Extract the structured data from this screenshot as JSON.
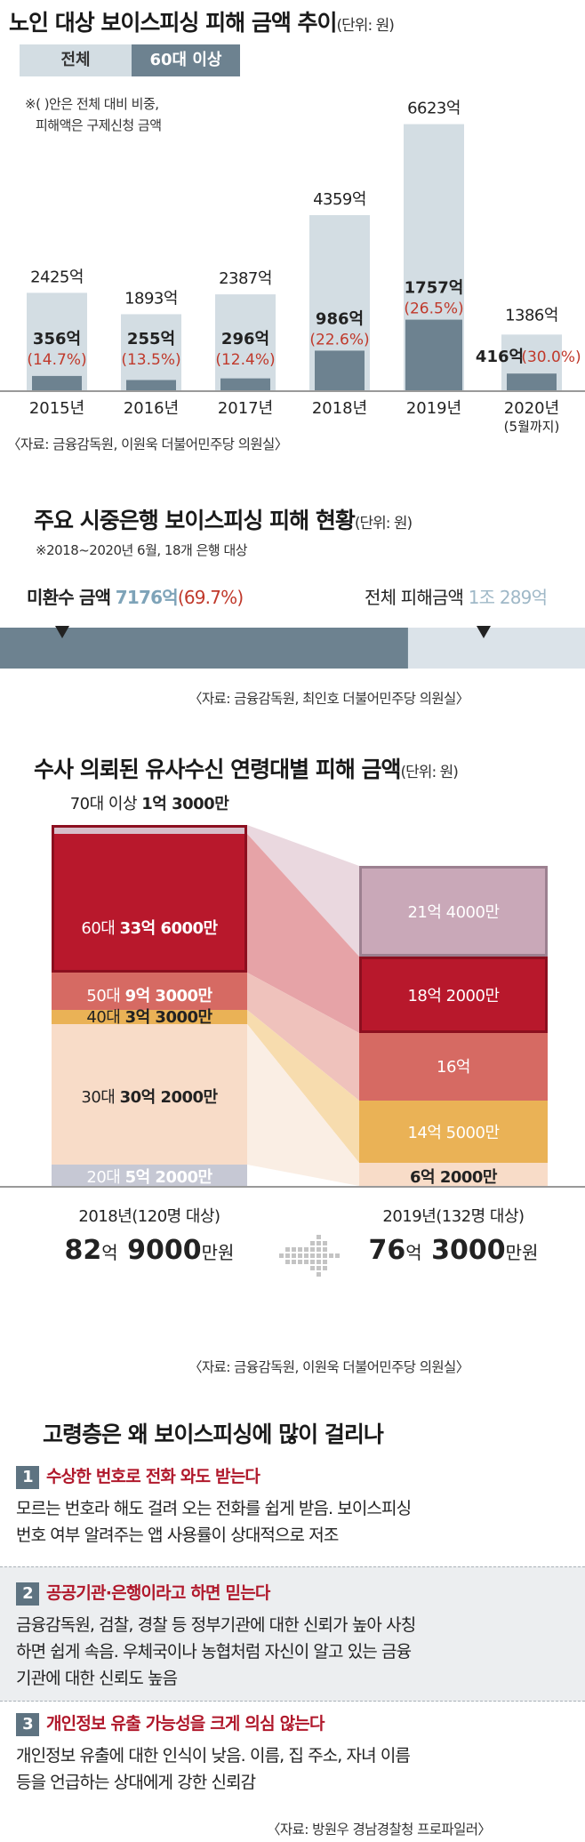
{
  "colors": {
    "total_bar": "#d3dde3",
    "sixties_bar": "#6d8290",
    "red_text": "#c0392b",
    "blue_num": "#8aa7b8",
    "age_70": "#c9a8b8",
    "age_60": "#b8182c",
    "age_50": "#d66a63",
    "age_40": "#eab256",
    "age_30": "#f8dcc8",
    "age_20": "#c6c8d4"
  },
  "section1": {
    "title": "노인 대상 보이스피싱 피해 금액 추이",
    "unit": "(단위: 원)",
    "legend_total": "전체",
    "legend_sixties": "60대 이상",
    "note_line1": "※(  )안은 전체 대비 비중,",
    "note_line2": "피해액은 구제신청 금액",
    "source": "〈자료: 금융감독원, 이원욱 더불어민주당 의원실〉",
    "years": [
      "2015년",
      "2016년",
      "2017년",
      "2018년",
      "2019년",
      "2020년"
    ],
    "year_note": "(5월까지)",
    "total_labels": [
      "2425억",
      "1893억",
      "2387억",
      "4359억",
      "6623억",
      "1386억"
    ],
    "sixties_labels": [
      "356억",
      "255억",
      "296억",
      "986억",
      "1757억",
      "416억"
    ],
    "share_labels": [
      "(14.7%)",
      "(13.5%)",
      "(12.4%)",
      "(22.6%)",
      "(26.5%)",
      "(30.0%)"
    ]
  },
  "section2": {
    "title": "주요 시중은행 보이스피싱 피해 현황",
    "unit": "(단위: 원)",
    "note": "※2018~2020년 6월, 18개 은행 대상",
    "unrefunded_label": "미환수 금액",
    "unrefunded_value": "7176억",
    "unrefunded_share": "(69.7%)",
    "total_label": "전체 피해금액",
    "total_value": "1조 289억",
    "source": "〈자료: 금융감독원, 최인호 더불어민주당 의원실〉"
  },
  "section3": {
    "title": "수사 의뢰된 유사수신 연령대별 피해 금액",
    "unit": "(단위: 원)",
    "left": {
      "age70_label": "70대 이상",
      "age70_value": "1억 3000만",
      "age60_label": "60대",
      "age60_value": "33억 6000만",
      "age50_label": "50대",
      "age50_value": "9억 3000만",
      "age40_label": "40대",
      "age40_value": "3억 3000만",
      "age30_label": "30대",
      "age30_value": "30억 2000만",
      "age20_label": "20대",
      "age20_value": "5억 2000만",
      "year": "2018년(120명 대상)",
      "total_a": "82",
      "total_b": "억",
      "total_c": "9000",
      "total_d": "만원"
    },
    "right": {
      "age70_value": "21억 4000만",
      "age60_value": "18억 2000만",
      "age50_value": "16억",
      "age40_value": "14억 5000만",
      "age30_value": "6억 2000만",
      "year": "2019년(132명 대상)",
      "total_a": "76",
      "total_b": "억",
      "total_c": "3000",
      "total_d": "만원"
    },
    "source": "〈자료: 금융감독원, 이원욱 더불어민주당 의원실〉"
  },
  "section4": {
    "title": "고령층은 왜 보이스피싱에 많이 걸리나",
    "reasons": [
      {
        "num": "1",
        "head": "수상한 번호로 전화 와도 받는다",
        "line1": "모르는 번호라 해도 걸려 오는 전화를 쉽게 받음. 보이스피싱",
        "line2": "번호 여부 알려주는 앱 사용률이 상대적으로 저조",
        "line3": ""
      },
      {
        "num": "2",
        "head": "공공기관·은행이라고 하면 믿는다",
        "line1": "금융감독원, 검찰, 경찰 등 정부기관에 대한 신뢰가 높아 사칭",
        "line2": "하면 쉽게 속음. 우체국이나 농협처럼 자신이 알고 있는 금융",
        "line3": "기관에 대한 신뢰도 높음"
      },
      {
        "num": "3",
        "head": "개인정보 유출 가능성을 크게 의심 않는다",
        "line1": "개인정보 유출에 대한 인식이 낮음. 이름, 집 주소, 자녀 이름",
        "line2": "등을 언급하는 상대에게 강한 신뢰감",
        "line3": ""
      }
    ],
    "source": "〈자료: 방원우 경남경찰청 프로파일러〉"
  },
  "chart_data": [
    {
      "type": "bar",
      "title": "노인 대상 보이스피싱 피해 금액 추이",
      "unit": "억원",
      "categories": [
        "2015년",
        "2016년",
        "2017년",
        "2018년",
        "2019년",
        "2020년(5월까지)"
      ],
      "series": [
        {
          "name": "전체",
          "values": [
            2425,
            1893,
            2387,
            4359,
            6623,
            1386
          ]
        },
        {
          "name": "60대 이상",
          "values": [
            356,
            255,
            296,
            986,
            1757,
            416
          ]
        }
      ],
      "share_pct": [
        14.7,
        13.5,
        12.4,
        22.6,
        26.5,
        30.0
      ]
    },
    {
      "type": "bar",
      "title": "주요 시중은행 보이스피싱 피해 현황",
      "unit": "억원",
      "categories": [
        "미환수 금액",
        "전체 피해금액"
      ],
      "values": [
        7176,
        10289
      ],
      "share_pct": [
        69.7,
        100
      ]
    },
    {
      "type": "bar",
      "title": "수사 의뢰된 유사수신 연령대별 피해 금액",
      "unit": "만원",
      "categories": [
        "2018년",
        "2019년"
      ],
      "series": [
        {
          "name": "70대 이상",
          "values": [
            13000,
            214000
          ]
        },
        {
          "name": "60대",
          "values": [
            336000,
            182000
          ]
        },
        {
          "name": "50대",
          "values": [
            93000,
            160000
          ]
        },
        {
          "name": "40대",
          "values": [
            33000,
            145000
          ]
        },
        {
          "name": "30대",
          "values": [
            302000,
            62000
          ]
        },
        {
          "name": "20대",
          "values": [
            52000,
            0
          ]
        }
      ],
      "totals": [
        829000,
        763000
      ]
    }
  ]
}
